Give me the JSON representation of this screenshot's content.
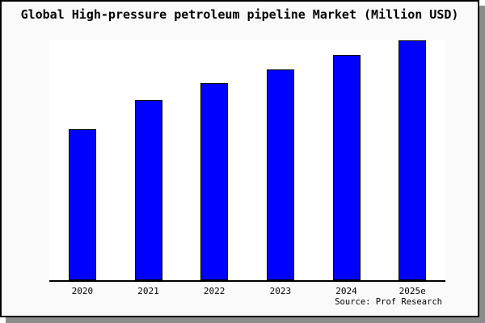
{
  "window": {
    "title": "Global High-pressure petroleum pipeline Market (Million USD)"
  },
  "chart_data": {
    "type": "bar",
    "title": "Global High-pressure petroleum pipeline Market (Million USD)",
    "categories": [
      "2020",
      "2021",
      "2022",
      "2023",
      "2024",
      "2025e"
    ],
    "values": [
      63,
      75,
      82,
      88,
      94,
      100
    ],
    "values_note": "No y-axis ticks or value labels shown in chart; values are estimated bar heights relative to 2025e = 100",
    "ylim": [
      0,
      100
    ],
    "xlabel": "",
    "ylabel": "",
    "grid": false,
    "legend": false,
    "bar_color": "#0000ff",
    "bar_border_color": "#000000",
    "plot_background": "#ffffff",
    "card_background": "#fafafa",
    "frame_color": "#000000",
    "shadow_color": "#8c8c8c"
  },
  "footer": {
    "source": "Source: Prof Research"
  }
}
